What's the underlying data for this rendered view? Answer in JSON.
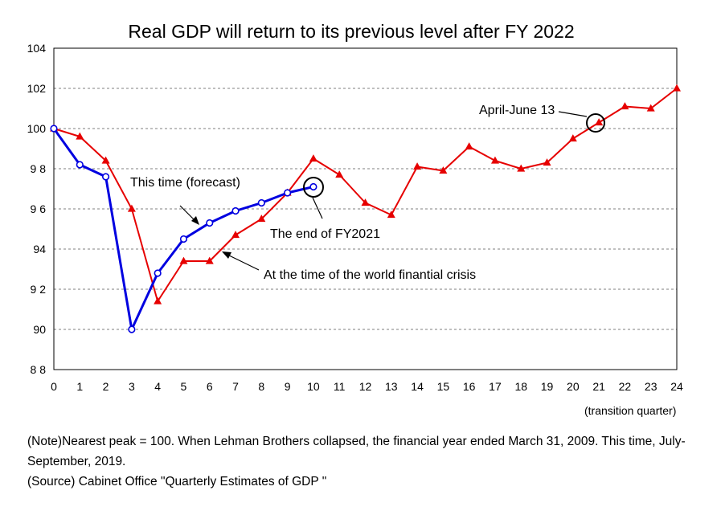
{
  "chart_data": {
    "type": "line",
    "title": "Real GDP will return to its previous level after FY 2022",
    "x_unit_label": "(transition quarter)",
    "ylim": [
      88,
      104
    ],
    "xlim": [
      0,
      24
    ],
    "y_ticks": [
      "104",
      "102",
      "100",
      "9 8",
      "9 6",
      "94",
      "9 2",
      "90",
      "8 8"
    ],
    "y_tick_values": [
      104,
      102,
      100,
      98,
      96,
      94,
      92,
      90,
      88
    ],
    "x_ticks": [
      "0",
      "1",
      "2",
      "3",
      "4",
      "5",
      "6",
      "7",
      "8",
      "9",
      "10",
      "11",
      "12",
      "13",
      "14",
      "15",
      "16",
      "17",
      "18",
      "19",
      "20",
      "21",
      "22",
      "23",
      "24"
    ],
    "grid": "horizontal dashed",
    "series": [
      {
        "name": "At the time of the world finantial crisis",
        "color": "#e60000",
        "marker": "triangle",
        "x": [
          0,
          1,
          2,
          3,
          4,
          5,
          6,
          7,
          8,
          9,
          10,
          11,
          12,
          13,
          14,
          15,
          16,
          17,
          18,
          19,
          20,
          21,
          22,
          23,
          24
        ],
        "values": [
          100.0,
          99.6,
          98.4,
          96.0,
          91.4,
          93.4,
          93.4,
          94.7,
          95.5,
          96.8,
          98.5,
          97.7,
          96.3,
          95.7,
          98.1,
          97.9,
          99.1,
          98.4,
          98.0,
          98.3,
          99.5,
          100.3,
          101.1,
          101.0,
          102.0
        ]
      },
      {
        "name": "This time (forecast)",
        "color": "#0000e0",
        "marker": "circle",
        "x": [
          0,
          1,
          2,
          3,
          4,
          5,
          6,
          7,
          8,
          9,
          10
        ],
        "values": [
          100.0,
          98.2,
          97.6,
          90.0,
          92.8,
          94.5,
          95.3,
          95.9,
          96.3,
          96.8,
          97.1
        ]
      }
    ],
    "annotations": [
      {
        "text": "This time (forecast)"
      },
      {
        "text": "The end of FY2021"
      },
      {
        "text": "At the time of the world finantial crisis"
      },
      {
        "text": "April-June 13"
      }
    ]
  },
  "notes": {
    "note": "(Note)Nearest peak = 100. When Lehman Brothers collapsed, the financial year ended March 31, 2009. This time, July-September, 2019.",
    "source": "(Source) Cabinet Office \"Quarterly Estimates of GDP \""
  }
}
